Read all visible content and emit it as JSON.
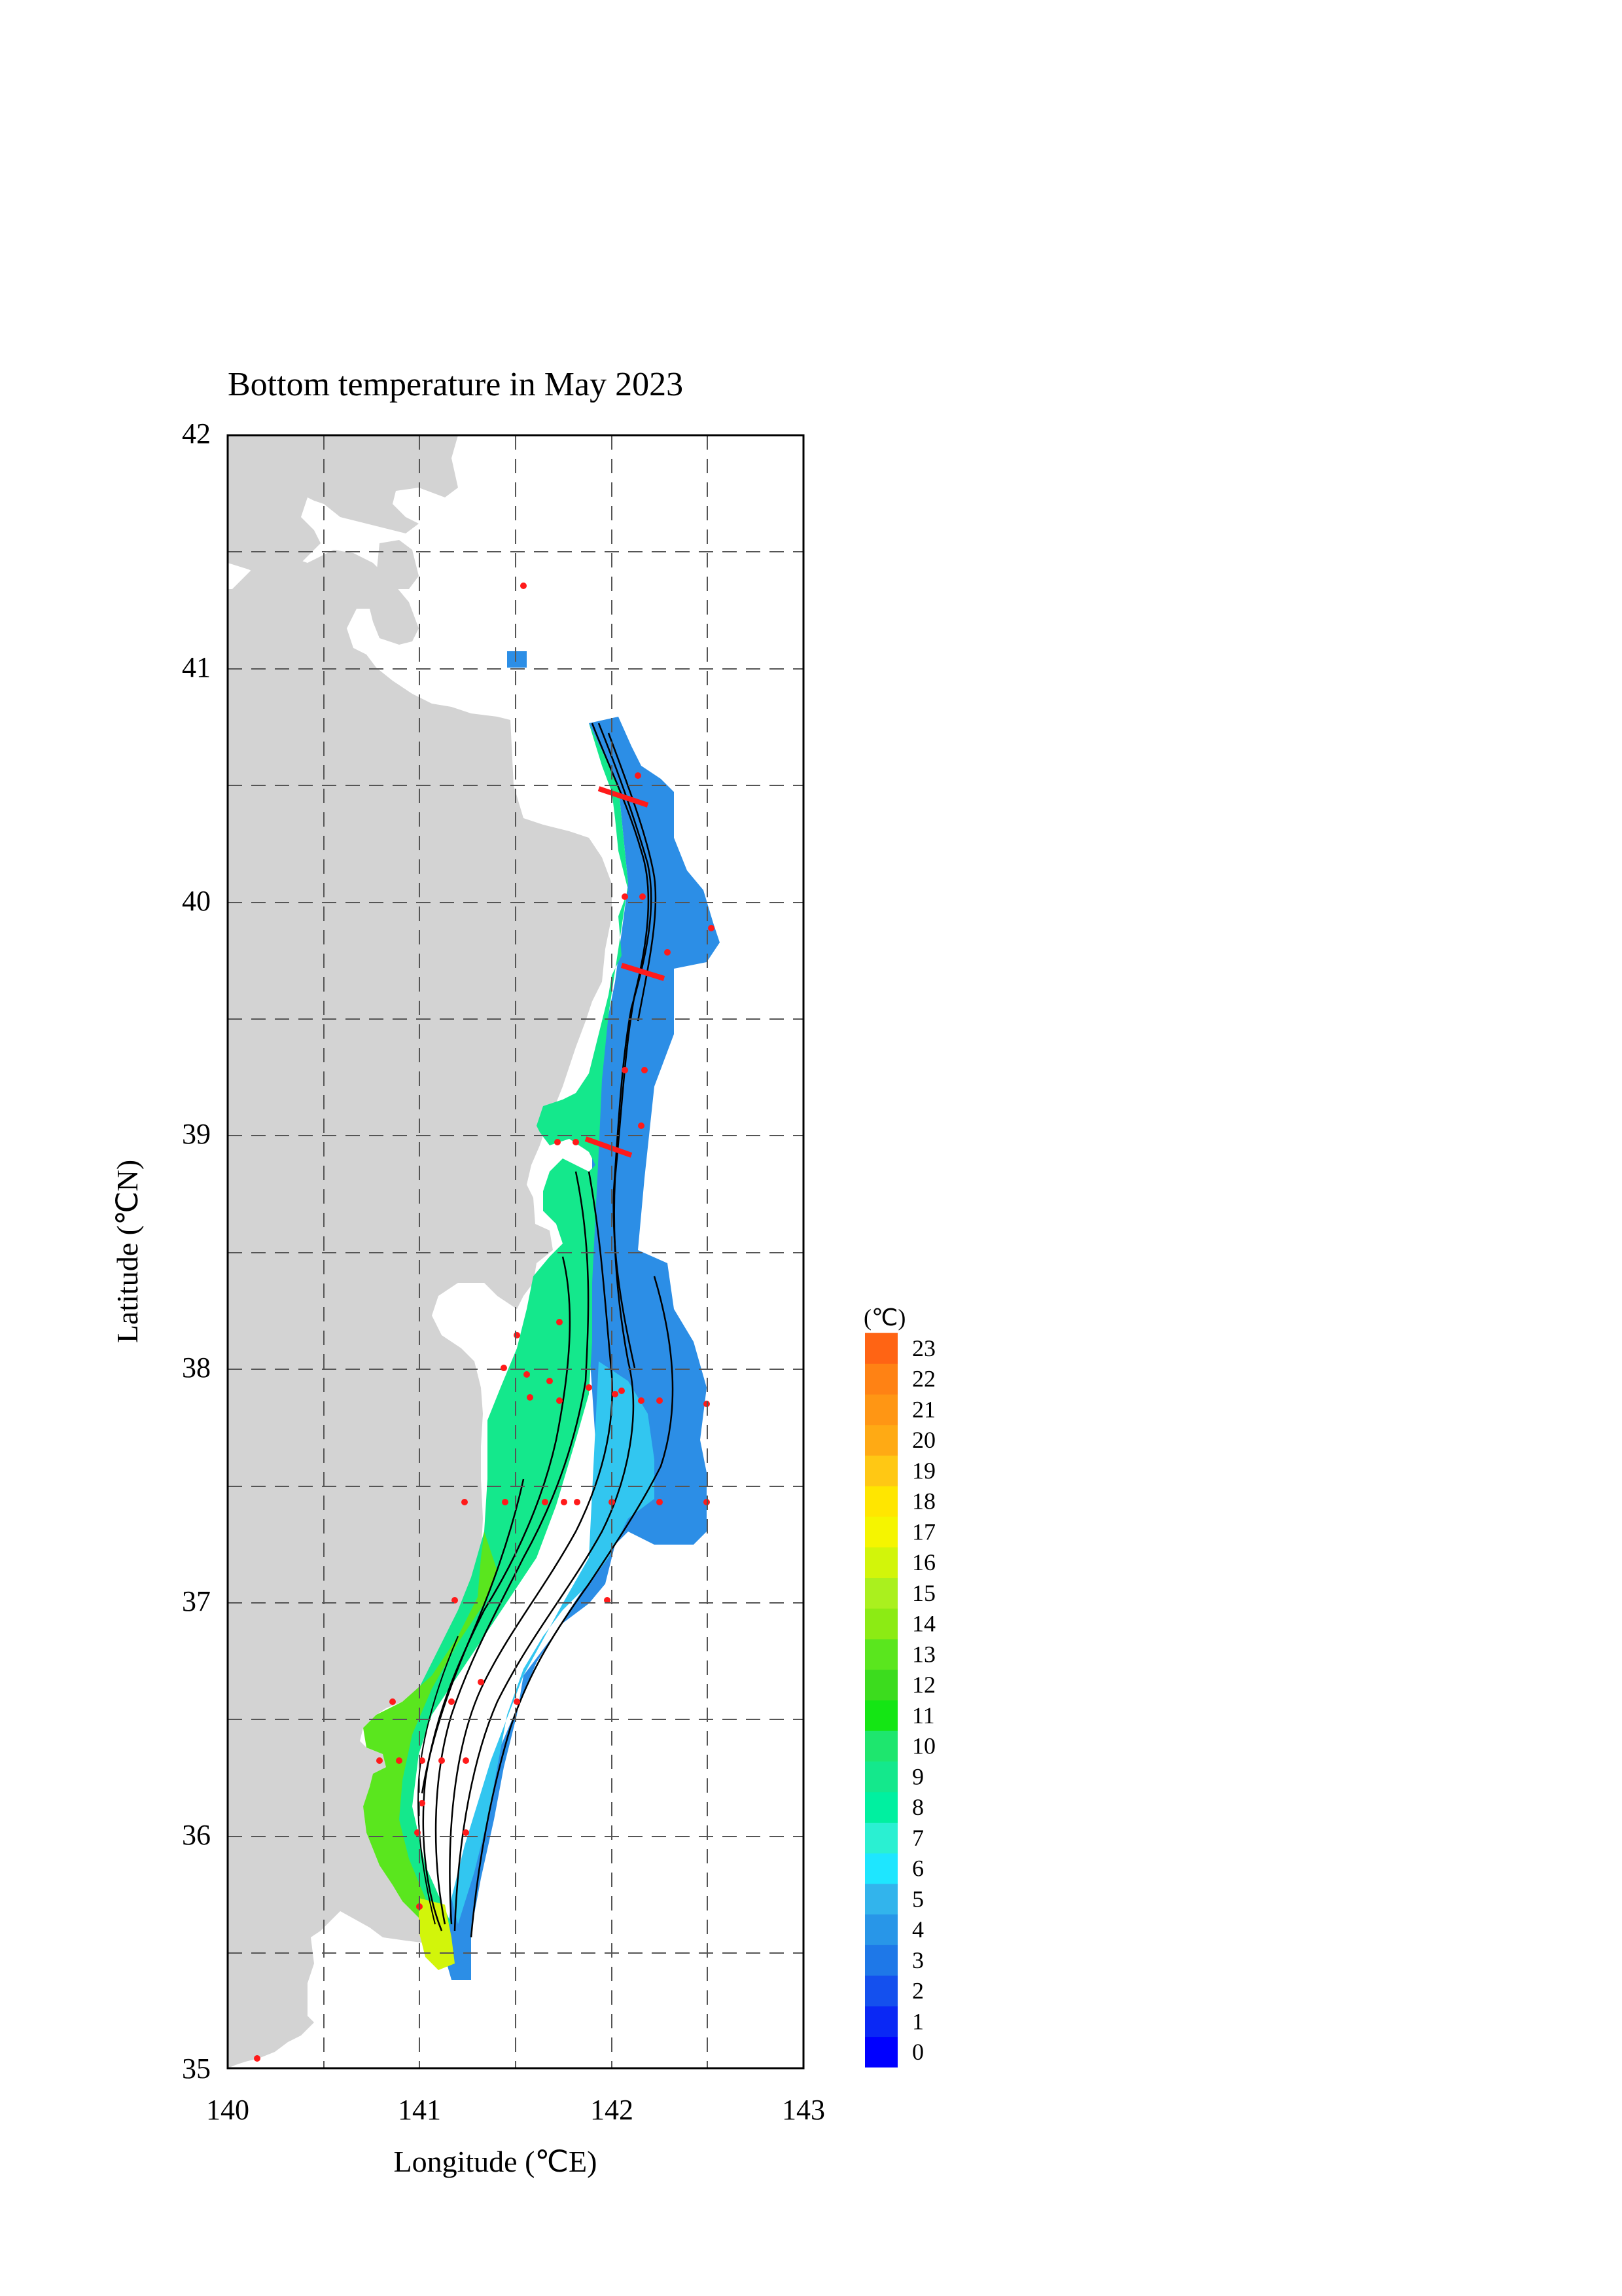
{
  "map": {
    "title": "Bottom temperature in May 2023",
    "xlabel": "Longitude (℃E)",
    "ylabel": "Latitude (℃N)",
    "x_ticks": [
      "140",
      "141",
      "142",
      "143"
    ],
    "y_ticks": [
      "35",
      "36",
      "37",
      "38",
      "39",
      "40",
      "41",
      "42"
    ],
    "lon_range": [
      140,
      143
    ],
    "lat_range": [
      35,
      42
    ],
    "grid": "dashed, every 0.5 degree",
    "land_color": "#d3d3d3",
    "station_color": "#ff1a1a"
  },
  "colorbar": {
    "unit": "(℃)",
    "levels": [
      "0",
      "1",
      "2",
      "3",
      "4",
      "5",
      "6",
      "7",
      "8",
      "9",
      "10",
      "11",
      "12",
      "13",
      "14",
      "15",
      "16",
      "17",
      "18",
      "19",
      "20",
      "21",
      "22",
      "23"
    ],
    "colors": [
      "#0000ff",
      "#0a28f5",
      "#1450ee",
      "#1e78e8",
      "#2896e8",
      "#32b4ec",
      "#1ee6ff",
      "#2af0d2",
      "#00f0a0",
      "#14e88c",
      "#1ee66e",
      "#14e614",
      "#3cdc1e",
      "#5ae61e",
      "#8ceb14",
      "#aaf01e",
      "#d2f50a",
      "#f5f500",
      "#ffe600",
      "#ffc814",
      "#ffaa14",
      "#ff9614",
      "#ff8214",
      "#ff6414"
    ]
  }
}
